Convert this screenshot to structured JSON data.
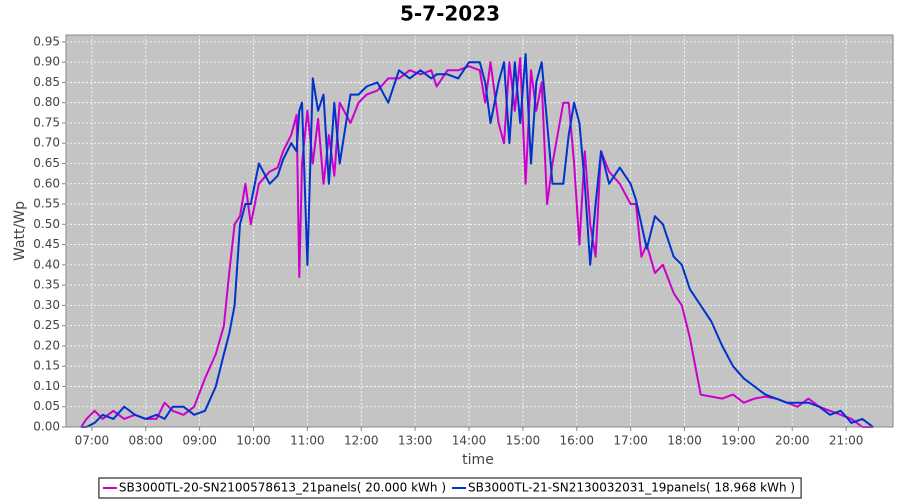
{
  "chart_data": {
    "type": "line",
    "title": "5-7-2023",
    "x_label": "time",
    "y_label": "Watt/Wp",
    "x": [
      6.8,
      6.9,
      7.05,
      7.2,
      7.4,
      7.6,
      7.8,
      8.0,
      8.2,
      8.35,
      8.5,
      8.7,
      8.9,
      9.1,
      9.3,
      9.45,
      9.55,
      9.65,
      9.75,
      9.85,
      9.95,
      10.1,
      10.3,
      10.45,
      10.55,
      10.7,
      10.8,
      10.85,
      10.9,
      11.0,
      11.1,
      11.2,
      11.3,
      11.4,
      11.5,
      11.6,
      11.8,
      11.95,
      12.1,
      12.3,
      12.5,
      12.7,
      12.9,
      13.1,
      13.3,
      13.4,
      13.6,
      13.8,
      14.0,
      14.2,
      14.3,
      14.4,
      14.55,
      14.65,
      14.75,
      14.85,
      14.95,
      15.05,
      15.15,
      15.25,
      15.35,
      15.45,
      15.55,
      15.75,
      15.85,
      15.95,
      16.05,
      16.15,
      16.25,
      16.35,
      16.45,
      16.6,
      16.8,
      17.0,
      17.1,
      17.2,
      17.3,
      17.45,
      17.6,
      17.8,
      17.95,
      18.1,
      18.3,
      18.5,
      18.7,
      18.9,
      19.1,
      19.3,
      19.5,
      19.7,
      19.9,
      20.1,
      20.3,
      20.5,
      20.7,
      20.9,
      21.1,
      21.3,
      21.5
    ],
    "series": [
      {
        "name": "SB3000TL-20-SN2100578613_21panels( 20.000 kWh )",
        "color": "#cc00cc",
        "values": [
          0,
          0.02,
          0.04,
          0.02,
          0.04,
          0.02,
          0.03,
          0.02,
          0.02,
          0.06,
          0.04,
          0.03,
          0.05,
          0.12,
          0.18,
          0.25,
          0.38,
          0.5,
          0.52,
          0.6,
          0.5,
          0.6,
          0.63,
          0.64,
          0.68,
          0.72,
          0.77,
          0.37,
          0.65,
          0.78,
          0.65,
          0.76,
          0.6,
          0.72,
          0.62,
          0.8,
          0.75,
          0.8,
          0.82,
          0.83,
          0.86,
          0.86,
          0.88,
          0.87,
          0.88,
          0.84,
          0.88,
          0.88,
          0.89,
          0.88,
          0.8,
          0.9,
          0.75,
          0.7,
          0.9,
          0.78,
          0.91,
          0.6,
          0.88,
          0.78,
          0.85,
          0.55,
          0.65,
          0.8,
          0.8,
          0.65,
          0.45,
          0.68,
          0.5,
          0.42,
          0.68,
          0.63,
          0.6,
          0.55,
          0.55,
          0.42,
          0.45,
          0.38,
          0.4,
          0.33,
          0.3,
          0.22,
          0.08,
          0.075,
          0.07,
          0.08,
          0.06,
          0.07,
          0.075,
          0.07,
          0.06,
          0.05,
          0.07,
          0.05,
          0.04,
          0.03,
          0.02,
          0,
          0
        ]
      },
      {
        "name": "SB3000TL-21-SN2130032031_19panels( 18.968 kWh )",
        "color": "#0033cc",
        "values": [
          0,
          0,
          0.01,
          0.03,
          0.02,
          0.05,
          0.03,
          0.02,
          0.03,
          0.02,
          0.05,
          0.05,
          0.03,
          0.04,
          0.1,
          0.18,
          0.23,
          0.3,
          0.5,
          0.55,
          0.55,
          0.65,
          0.6,
          0.62,
          0.66,
          0.7,
          0.68,
          0.78,
          0.8,
          0.4,
          0.86,
          0.78,
          0.82,
          0.6,
          0.8,
          0.65,
          0.82,
          0.82,
          0.84,
          0.85,
          0.8,
          0.88,
          0.86,
          0.88,
          0.86,
          0.87,
          0.87,
          0.86,
          0.9,
          0.9,
          0.85,
          0.75,
          0.85,
          0.9,
          0.7,
          0.9,
          0.75,
          0.92,
          0.65,
          0.85,
          0.9,
          0.75,
          0.6,
          0.6,
          0.72,
          0.8,
          0.75,
          0.6,
          0.4,
          0.55,
          0.68,
          0.6,
          0.64,
          0.6,
          0.56,
          0.5,
          0.44,
          0.52,
          0.5,
          0.42,
          0.4,
          0.34,
          0.3,
          0.26,
          0.2,
          0.15,
          0.12,
          0.1,
          0.08,
          0.07,
          0.06,
          0.06,
          0.06,
          0.05,
          0.03,
          0.04,
          0.01,
          0.02,
          0
        ]
      }
    ],
    "xlim": [
      6.52,
      21.87
    ],
    "ylim": [
      0,
      0.967
    ],
    "xticks": [
      {
        "value": 7,
        "label": "07:00"
      },
      {
        "value": 8,
        "label": "08:00"
      },
      {
        "value": 9,
        "label": "09:00"
      },
      {
        "value": 10,
        "label": "10:00"
      },
      {
        "value": 11,
        "label": "11:00"
      },
      {
        "value": 12,
        "label": "12:00"
      },
      {
        "value": 13,
        "label": "13:00"
      },
      {
        "value": 14,
        "label": "14:00"
      },
      {
        "value": 15,
        "label": "15:00"
      },
      {
        "value": 16,
        "label": "16:00"
      },
      {
        "value": 17,
        "label": "17:00"
      },
      {
        "value": 18,
        "label": "18:00"
      },
      {
        "value": 19,
        "label": "19:00"
      },
      {
        "value": 20,
        "label": "20:00"
      },
      {
        "value": 21,
        "label": "21:00"
      }
    ],
    "yticks": [
      {
        "value": 0,
        "label": "0.00"
      },
      0.05,
      {
        "value": 0.1,
        "label": "0.10"
      },
      0.15,
      {
        "value": 0.2,
        "label": "0.20"
      },
      0.25,
      {
        "value": 0.3,
        "label": "0.30"
      },
      0.35,
      {
        "value": 0.4,
        "label": "0.40"
      },
      0.45,
      {
        "value": 0.5,
        "label": "0.50"
      },
      0.55,
      {
        "value": 0.6,
        "label": "0.60"
      },
      0.65,
      {
        "value": 0.7,
        "label": "0.70"
      },
      0.75,
      {
        "value": 0.8,
        "label": "0.80"
      },
      0.85,
      {
        "value": 0.9,
        "label": "0.90"
      },
      0.95
    ],
    "grid": true,
    "legend": "bottom"
  }
}
